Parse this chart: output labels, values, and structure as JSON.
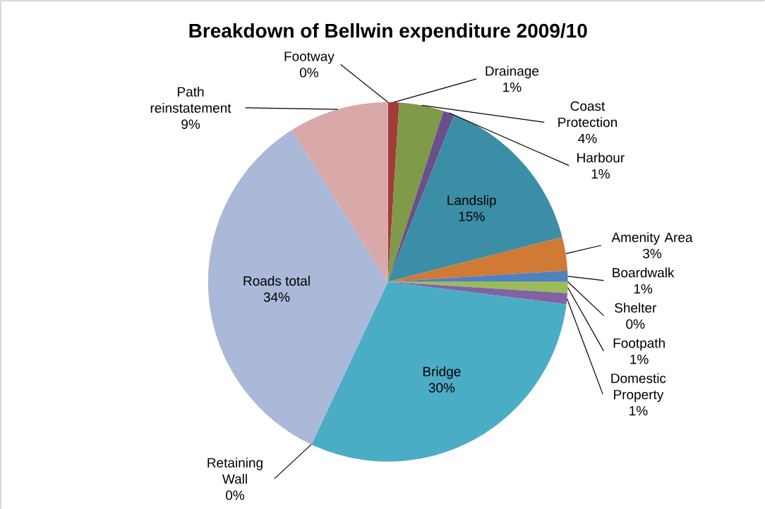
{
  "chart_data": {
    "type": "pie",
    "title": "Breakdown of Bellwin expenditure 2009/10",
    "categories": [
      "Footway",
      "Drainage",
      "Coast Protection",
      "Harbour",
      "Landslip",
      "Amenity Area",
      "Boardwalk",
      "Shelter",
      "Footpath",
      "Domestic Property",
      "Bridge",
      "Retaining Wall",
      "Roads total",
      "Path reinstatement"
    ],
    "values": [
      0,
      1,
      4,
      1,
      15,
      3,
      1,
      0,
      1,
      1,
      30,
      0,
      34,
      9
    ],
    "value_labels": [
      "0%",
      "1%",
      "4%",
      "1%",
      "15%",
      "3%",
      "1%",
      "0%",
      "1%",
      "1%",
      "30%",
      "0%",
      "34%",
      "9%"
    ],
    "colors": [
      "#3c6aa0",
      "#a23c3a",
      "#7f9a48",
      "#6a4f8a",
      "#3b8ea5",
      "#d07a35",
      "#4f81bd",
      "#c0504d",
      "#9bbb59",
      "#8064a2",
      "#4bacc6",
      "#f79646",
      "#aab9d7",
      "#d9a9a9"
    ]
  }
}
